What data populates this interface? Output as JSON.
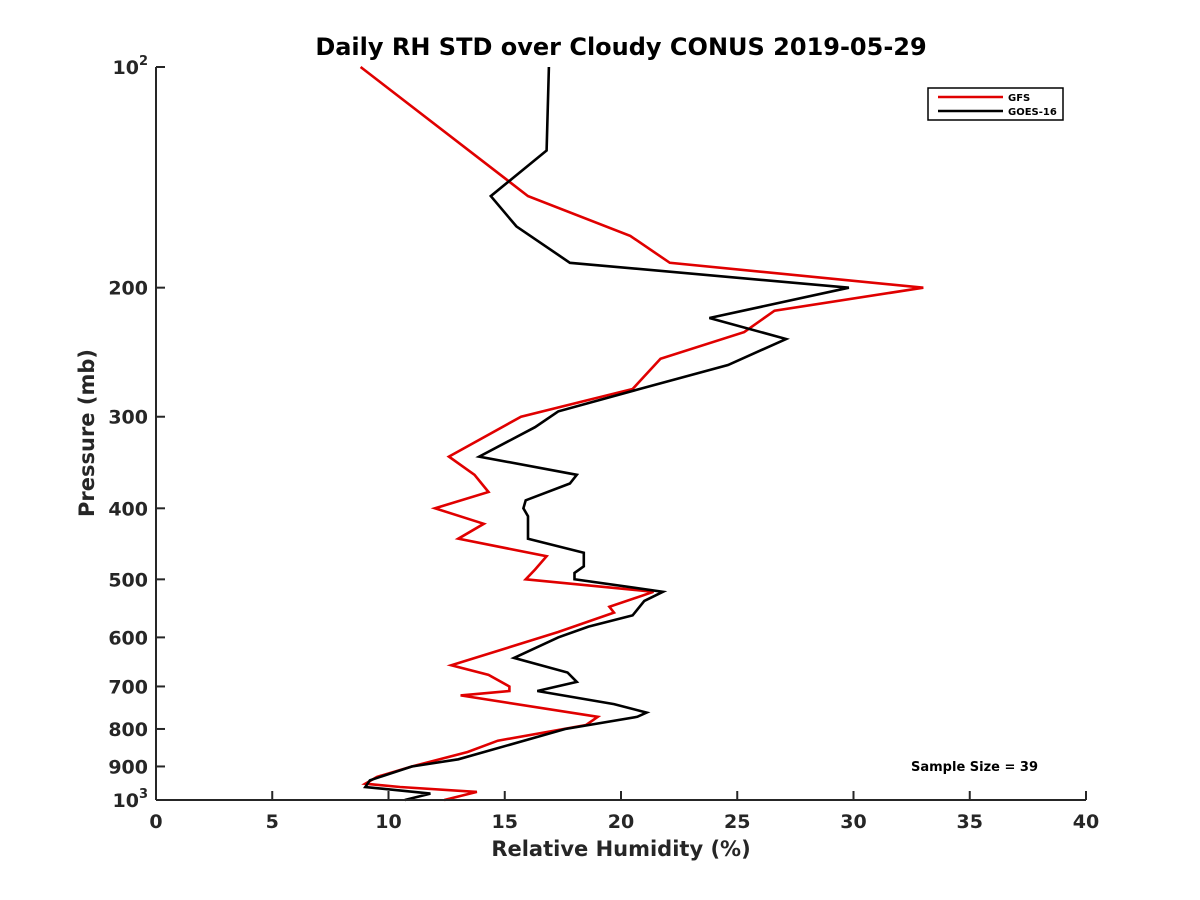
{
  "chart_data": {
    "type": "line",
    "title": "Daily RH STD over Cloudy CONUS 2019-05-29",
    "xlabel": "Relative Humidity (%)",
    "ylabel": "Pressure (mb)",
    "xlim": [
      0,
      40
    ],
    "ylim": [
      100,
      1000
    ],
    "y_scale": "log",
    "y_reversed": true,
    "grid": false,
    "legend_position": "top-right",
    "x_ticks": [
      "0",
      "5",
      "10",
      "15",
      "20",
      "25",
      "30",
      "35",
      "40"
    ],
    "y_ticks": [
      {
        "value": 100,
        "label": "10",
        "sup": "2"
      },
      {
        "value": 200,
        "label": "200",
        "sup": ""
      },
      {
        "value": 300,
        "label": "300",
        "sup": ""
      },
      {
        "value": 400,
        "label": "400",
        "sup": ""
      },
      {
        "value": 500,
        "label": "500",
        "sup": ""
      },
      {
        "value": 600,
        "label": "600",
        "sup": ""
      },
      {
        "value": 700,
        "label": "700",
        "sup": ""
      },
      {
        "value": 800,
        "label": "800",
        "sup": ""
      },
      {
        "value": 900,
        "label": "900",
        "sup": ""
      },
      {
        "value": 1000,
        "label": "10",
        "sup": "3"
      }
    ],
    "annotation": "Sample Size = 39",
    "series": [
      {
        "name": "GFS",
        "color": "#e00000",
        "points": [
          [
            8.8,
            100
          ],
          [
            16.0,
            150
          ],
          [
            20.4,
            170
          ],
          [
            22.1,
            185
          ],
          [
            33.0,
            200
          ],
          [
            26.6,
            215
          ],
          [
            25.3,
            230
          ],
          [
            21.7,
            250
          ],
          [
            20.5,
            275
          ],
          [
            15.7,
            300
          ],
          [
            12.6,
            340
          ],
          [
            13.7,
            360
          ],
          [
            14.3,
            380
          ],
          [
            12.0,
            400
          ],
          [
            14.1,
            420
          ],
          [
            13.0,
            440
          ],
          [
            16.8,
            465
          ],
          [
            16.3,
            485
          ],
          [
            15.9,
            500
          ],
          [
            21.4,
            520
          ],
          [
            19.5,
            545
          ],
          [
            19.7,
            555
          ],
          [
            17.3,
            590
          ],
          [
            12.7,
            655
          ],
          [
            14.3,
            675
          ],
          [
            15.2,
            700
          ],
          [
            15.2,
            710
          ],
          [
            13.1,
            720
          ],
          [
            19.0,
            770
          ],
          [
            18.5,
            790
          ],
          [
            14.7,
            830
          ],
          [
            13.4,
            860
          ],
          [
            11.0,
            900
          ],
          [
            9.5,
            930
          ],
          [
            9.0,
            950
          ],
          [
            10.5,
            960
          ],
          [
            13.8,
            975
          ],
          [
            12.4,
            1000
          ]
        ]
      },
      {
        "name": "GOES-16",
        "color": "#000000",
        "points": [
          [
            16.9,
            100
          ],
          [
            16.8,
            130
          ],
          [
            14.4,
            150
          ],
          [
            15.5,
            165
          ],
          [
            17.8,
            185
          ],
          [
            29.8,
            200
          ],
          [
            23.8,
            220
          ],
          [
            27.1,
            235
          ],
          [
            24.6,
            255
          ],
          [
            20.8,
            275
          ],
          [
            17.3,
            295
          ],
          [
            16.3,
            310
          ],
          [
            13.9,
            340
          ],
          [
            18.1,
            360
          ],
          [
            17.8,
            370
          ],
          [
            15.9,
            390
          ],
          [
            15.8,
            400
          ],
          [
            16.0,
            410
          ],
          [
            16.0,
            420
          ],
          [
            16.0,
            440
          ],
          [
            18.4,
            460
          ],
          [
            18.4,
            480
          ],
          [
            18.0,
            490
          ],
          [
            18.0,
            500
          ],
          [
            21.8,
            520
          ],
          [
            21.0,
            535
          ],
          [
            20.5,
            560
          ],
          [
            18.6,
            580
          ],
          [
            17.3,
            600
          ],
          [
            15.4,
            640
          ],
          [
            17.7,
            670
          ],
          [
            18.1,
            690
          ],
          [
            16.4,
            710
          ],
          [
            19.7,
            740
          ],
          [
            21.1,
            760
          ],
          [
            20.7,
            770
          ],
          [
            17.6,
            800
          ],
          [
            13.0,
            880
          ],
          [
            11.0,
            900
          ],
          [
            9.2,
            940
          ],
          [
            9.0,
            960
          ],
          [
            11.8,
            980
          ],
          [
            10.7,
            1000
          ]
        ]
      }
    ]
  }
}
